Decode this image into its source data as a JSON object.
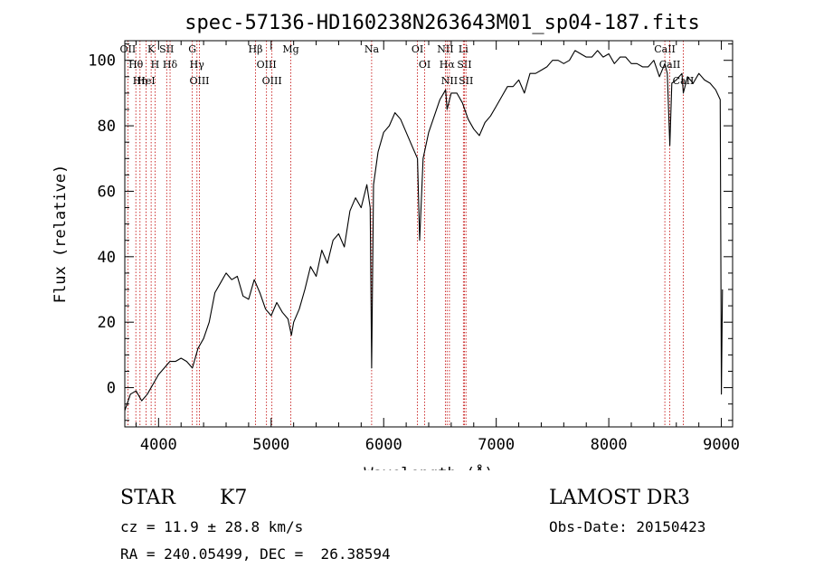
{
  "chart_data": {
    "type": "line",
    "title": "spec-57136-HD160238N263643M01_sp04-187.fits",
    "xlabel": "Wavelength (Å)",
    "ylabel": "Flux (relative)",
    "xlim": [
      3700,
      9100
    ],
    "ylim": [
      -12,
      106
    ],
    "xticks": [
      4000,
      5000,
      6000,
      7000,
      8000,
      9000
    ],
    "yticks": [
      0,
      20,
      40,
      60,
      80,
      100
    ],
    "grid": false,
    "series": [
      {
        "x": [
          3700,
          3750,
          3800,
          3850,
          3900,
          3950,
          4000,
          4050,
          4100,
          4150,
          4200,
          4250,
          4300,
          4350,
          4400,
          4450,
          4500,
          4550,
          4600,
          4650,
          4700,
          4750,
          4800,
          4850,
          4900,
          4950,
          5000,
          5050,
          5100,
          5150,
          5180,
          5200,
          5250,
          5300,
          5350,
          5400,
          5450,
          5500,
          5550,
          5600,
          5650,
          5700,
          5750,
          5800,
          5850,
          5880,
          5893,
          5910,
          5950,
          6000,
          6050,
          6100,
          6150,
          6200,
          6250,
          6300,
          6320,
          6350,
          6400,
          6450,
          6500,
          6550,
          6563,
          6600,
          6650,
          6700,
          6750,
          6800,
          6850,
          6900,
          6950,
          7000,
          7050,
          7100,
          7150,
          7200,
          7250,
          7300,
          7350,
          7400,
          7450,
          7500,
          7550,
          7600,
          7650,
          7700,
          7750,
          7800,
          7850,
          7900,
          7950,
          8000,
          8050,
          8100,
          8150,
          8200,
          8250,
          8300,
          8350,
          8400,
          8450,
          8498,
          8520,
          8542,
          8560,
          8600,
          8650,
          8662,
          8700,
          8750,
          8800,
          8850,
          8900,
          8950,
          8990,
          9000,
          9010
        ],
        "y": [
          -7,
          -2,
          -1,
          -4,
          -2,
          1,
          4,
          6,
          8,
          8,
          9,
          8,
          6,
          12,
          15,
          20,
          29,
          32,
          35,
          33,
          34,
          28,
          27,
          33,
          29,
          24,
          22,
          26,
          23,
          21,
          16,
          20,
          24,
          30,
          37,
          34,
          42,
          38,
          45,
          47,
          43,
          54,
          58,
          55,
          62,
          55,
          6,
          62,
          72,
          78,
          80,
          84,
          82,
          78,
          74,
          70,
          45,
          70,
          78,
          83,
          88,
          91,
          85,
          90,
          90,
          87,
          82,
          79,
          77,
          81,
          83,
          86,
          89,
          92,
          92,
          94,
          90,
          96,
          96,
          97,
          98,
          100,
          100,
          99,
          100,
          103,
          102,
          101,
          101,
          103,
          101,
          102,
          99,
          101,
          101,
          99,
          99,
          98,
          98,
          100,
          95,
          99,
          96,
          74,
          93,
          94,
          96,
          90,
          95,
          93,
          96,
          94,
          93,
          91,
          88,
          -2,
          30
        ]
      }
    ],
    "lines": [
      {
        "wl": 3727,
        "label": "OII"
      },
      {
        "wl": 3798,
        "label": "Hθ"
      },
      {
        "wl": 3835,
        "label": "Hη"
      },
      {
        "wl": 3889,
        "label": "HeI"
      },
      {
        "wl": 3934,
        "label": "K"
      },
      {
        "wl": 3969,
        "label": "H"
      },
      {
        "wl": 4072,
        "label": "SII"
      },
      {
        "wl": 4102,
        "label": "Hδ"
      },
      {
        "wl": 4300,
        "label": "G"
      },
      {
        "wl": 4341,
        "label": "Hγ"
      },
      {
        "wl": 4363,
        "label": "OIII"
      },
      {
        "wl": 4861,
        "label": "Hβ"
      },
      {
        "wl": 4959,
        "label": "OIII"
      },
      {
        "wl": 5007,
        "label": "OIII"
      },
      {
        "wl": 5175,
        "label": "Mg"
      },
      {
        "wl": 5893,
        "label": "Na"
      },
      {
        "wl": 6300,
        "label": "OI"
      },
      {
        "wl": 6364,
        "label": "OI"
      },
      {
        "wl": 6548,
        "label": "NII"
      },
      {
        "wl": 6563,
        "label": "Hα"
      },
      {
        "wl": 6584,
        "label": "NII"
      },
      {
        "wl": 6708,
        "label": "Li"
      },
      {
        "wl": 6717,
        "label": "SII"
      },
      {
        "wl": 6731,
        "label": "SII"
      },
      {
        "wl": 8498,
        "label": "CaII"
      },
      {
        "wl": 8542,
        "label": "CaII"
      },
      {
        "wl": 8662,
        "label": "CaII"
      }
    ]
  },
  "info": {
    "object_class": "STAR",
    "subclass": "K7",
    "survey": "LAMOST DR3",
    "cz": "cz = 11.9 ± 28.8 km/s",
    "obs_date": "Obs-Date: 20150423",
    "coords": "RA = 240.05499, DEC =  26.38594"
  },
  "colors": {
    "spectrum": "#000000",
    "line_marker": "#c00000"
  }
}
